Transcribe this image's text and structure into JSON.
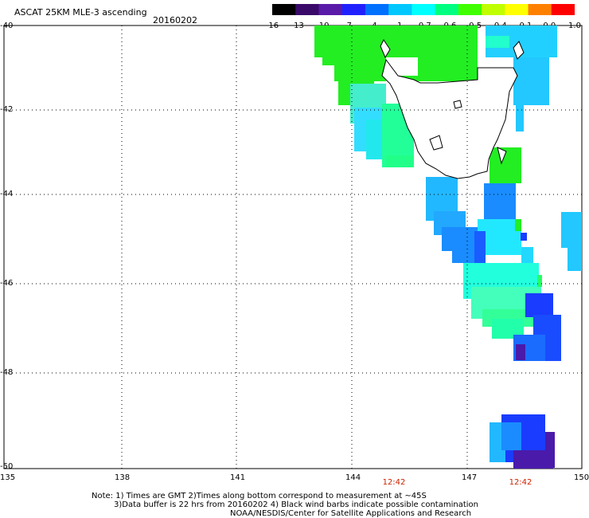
{
  "title": "ASCAT 25KM MLE-3 ascending",
  "date": "20160202",
  "colorbar": {
    "labels": [
      "-16",
      "-13",
      "-10",
      "-7",
      "-4",
      "-1",
      "-0.7",
      "-0.6",
      "-0.5",
      "-0.4",
      "-0.1",
      "0.0",
      "1.0"
    ],
    "colors": [
      "#000000",
      "#3a0a6a",
      "#5a1aa8",
      "#2020ff",
      "#0070ff",
      "#00c8ff",
      "#00ffff",
      "#00ff80",
      "#40ff00",
      "#c0ff00",
      "#ffff00",
      "#ff8000",
      "#ff0000"
    ]
  },
  "axes": {
    "lat_labels": [
      "-40",
      "-42",
      "-44",
      "-46",
      "-48",
      "-50"
    ],
    "lon_labels": [
      "135",
      "138",
      "141",
      "144",
      "147",
      "150"
    ]
  },
  "times": [
    "12:42",
    "12:42"
  ],
  "notes": [
    "Note: 1) Times are GMT 2)Times along bottom correspond to measurement at ~45S",
    "3)Data buffer is 22 hrs from 20160202 4) Black wind barbs indicate possible contamination",
    "NOAA/NESDIS/Center for Satellite Applications and Research"
  ],
  "colors": {
    "green": "#22ee22",
    "light_blue": "#22c8ff",
    "mid_blue": "#1a8cff",
    "blue": "#1a3cff",
    "cyan": "#22ffee",
    "purple": "#4a1aaa"
  }
}
